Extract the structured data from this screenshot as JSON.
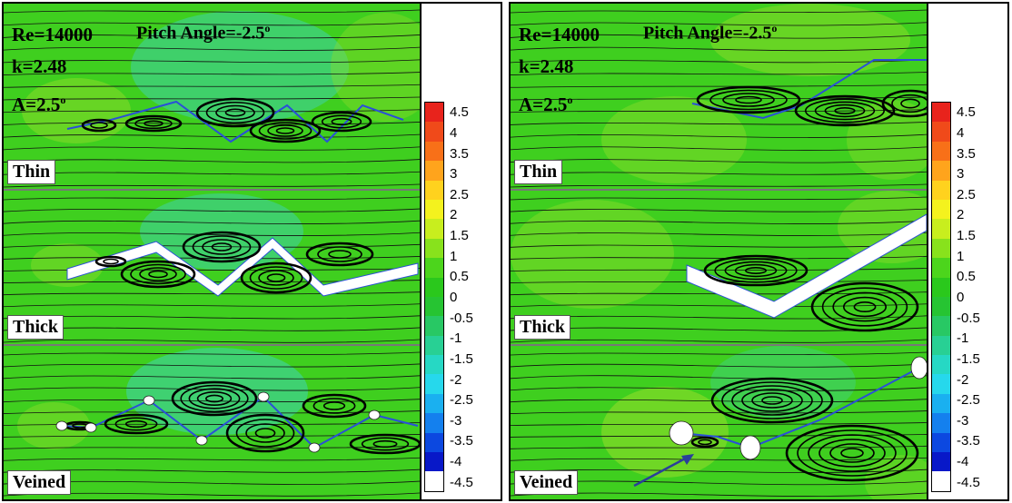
{
  "panels": [
    {
      "re": "Re=14000",
      "k": "k=2.48",
      "amplitude": "A=2.5",
      "amplitude_sup": "o",
      "pitch": "Pitch Angle=-2.5",
      "pitch_sup": "o",
      "rows": [
        {
          "label": "Thin"
        },
        {
          "label": "Thick"
        },
        {
          "label": "Veined"
        }
      ]
    },
    {
      "re": "Re=14000",
      "k": "k=2.48",
      "amplitude": "A=2.5",
      "amplitude_sup": "o",
      "pitch": "Pitch Angle=-2.5",
      "pitch_sup": "o",
      "rows": [
        {
          "label": "Thin"
        },
        {
          "label": "Thick"
        },
        {
          "label": "Veined"
        }
      ]
    }
  ],
  "colorbar": {
    "ticks": [
      "4.5",
      "4",
      "3.5",
      "3",
      "2.5",
      "2",
      "1.5",
      "1",
      "0.5",
      "0",
      "-0.5",
      "-1",
      "-1.5",
      "-2",
      "-2.5",
      "-3",
      "-3.5",
      "-4",
      "-4.5"
    ],
    "colors": [
      "#e8231c",
      "#f04a1a",
      "#f87018",
      "#ffa41c",
      "#ffd21e",
      "#f4f21e",
      "#c8ee1e",
      "#88e21c",
      "#4cd51c",
      "#2ac81c",
      "#26c432",
      "#28c864",
      "#28d094",
      "#26d8c4",
      "#26d8ec",
      "#1ab0f0",
      "#1480ee",
      "#0c48e0",
      "#0818c8"
    ]
  },
  "colors": {
    "field": "#3fcf1f",
    "field_light": "#8fdc2a",
    "field_cyan": "#40d2a8",
    "streamline": "#111111",
    "vortex": "#000000",
    "arrow": "#2a3f9a"
  }
}
